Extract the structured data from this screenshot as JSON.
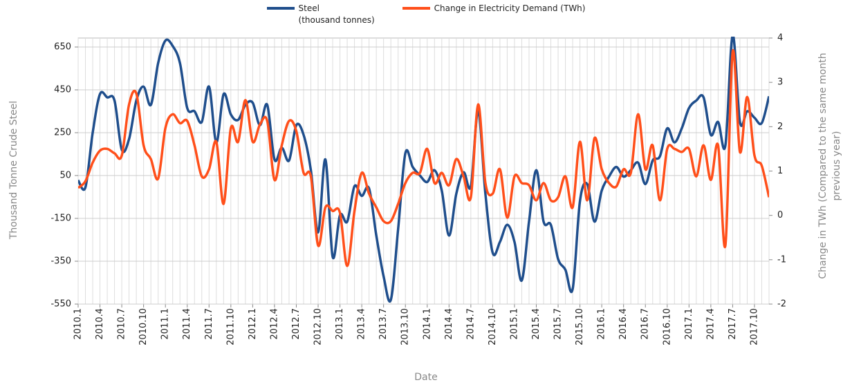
{
  "chart_data": {
    "type": "line",
    "x_label": "Date",
    "y_label": "Thousand Tonne Crude Steel",
    "y2_label": "Change in TWh (Compared to the same month previous year)",
    "categories": [
      "2010.1",
      null,
      null,
      "2010.4",
      null,
      null,
      "2010.7",
      null,
      null,
      "2010.10",
      null,
      null,
      "2011.1",
      null,
      null,
      "2011.4",
      null,
      null,
      "2011.7",
      null,
      null,
      "2011.10",
      null,
      null,
      "2012.1",
      null,
      null,
      "2012.4",
      null,
      null,
      "2012.7",
      null,
      null,
      "2012.10",
      null,
      null,
      "2013.1",
      null,
      null,
      "2013.4",
      null,
      null,
      "2013.7",
      null,
      null,
      "2013.10",
      null,
      null,
      "2014.1",
      null,
      null,
      "2014.4",
      null,
      null,
      "2014.7",
      null,
      null,
      "2014.10",
      null,
      null,
      "2015.1",
      null,
      null,
      "2015.4",
      null,
      null,
      "2015.7",
      null,
      null,
      "2015.10",
      null,
      null,
      "2016.1",
      null,
      null,
      "2016.4",
      null,
      null,
      "2016.7",
      null,
      null,
      "2016.10",
      null,
      null,
      "2017.1",
      null,
      null,
      "2017.4",
      null,
      null,
      "2017.7",
      null,
      null,
      "2017.10",
      null,
      null
    ],
    "series": [
      {
        "name": "Steel\n(thousand tonnes)",
        "color": "#1f4e8c",
        "axis": "y",
        "values": [
          28,
          -5,
          250,
          430,
          415,
          400,
          170,
          220,
          400,
          465,
          380,
          575,
          680,
          655,
          575,
          365,
          350,
          300,
          465,
          205,
          430,
          335,
          310,
          380,
          390,
          285,
          380,
          125,
          180,
          120,
          285,
          240,
          75,
          -215,
          125,
          -330,
          -135,
          -165,
          0,
          -45,
          -10,
          -230,
          -420,
          -530,
          -200,
          155,
          90,
          50,
          20,
          75,
          -20,
          -230,
          -35,
          65,
          0,
          350,
          -35,
          -310,
          -260,
          -180,
          -260,
          -440,
          -165,
          75,
          -165,
          -180,
          -340,
          -390,
          -480,
          -70,
          10,
          -165,
          -20,
          45,
          90,
          45,
          75,
          110,
          10,
          120,
          140,
          270,
          205,
          270,
          365,
          400,
          415,
          240,
          300,
          190,
          705,
          300,
          350,
          320,
          295,
          420
        ]
      },
      {
        "name": "Change in Electricity Demand (TWh)",
        "color": "#ff4f1a",
        "axis": "y2",
        "values": [
          0.62,
          0.77,
          1.19,
          1.46,
          1.5,
          1.4,
          1.35,
          2.5,
          2.75,
          1.58,
          1.27,
          0.83,
          1.97,
          2.28,
          2.08,
          2.13,
          1.58,
          0.88,
          1.04,
          1.66,
          0.26,
          1.97,
          1.66,
          2.6,
          1.66,
          2.05,
          2.13,
          0.8,
          1.58,
          2.13,
          1.9,
          0.96,
          0.88,
          -0.68,
          0.18,
          0.1,
          0.06,
          -1.14,
          0.1,
          0.96,
          0.49,
          0.18,
          -0.13,
          -0.13,
          0.26,
          0.73,
          0.96,
          0.96,
          1.5,
          0.73,
          0.96,
          0.68,
          1.27,
          0.88,
          0.41,
          2.5,
          0.73,
          0.49,
          1.04,
          -0.05,
          0.88,
          0.73,
          0.68,
          0.34,
          0.73,
          0.34,
          0.41,
          0.88,
          0.18,
          1.66,
          0.34,
          1.74,
          1.04,
          0.73,
          0.65,
          1.04,
          0.96,
          2.28,
          1.04,
          1.58,
          0.34,
          1.5,
          1.5,
          1.43,
          1.5,
          0.88,
          1.58,
          0.8,
          1.58,
          -0.68,
          3.69,
          1.43,
          2.67,
          1.35,
          1.12,
          0.41
        ]
      }
    ],
    "ylim": [
      -550,
      692
    ],
    "yticks": [
      -550,
      -350,
      -150,
      50,
      250,
      450,
      650
    ],
    "y2lim": [
      -2,
      4
    ],
    "y2ticks": [
      -2,
      -1,
      0,
      1,
      2,
      3,
      4
    ],
    "grid": true,
    "legend": "top"
  }
}
